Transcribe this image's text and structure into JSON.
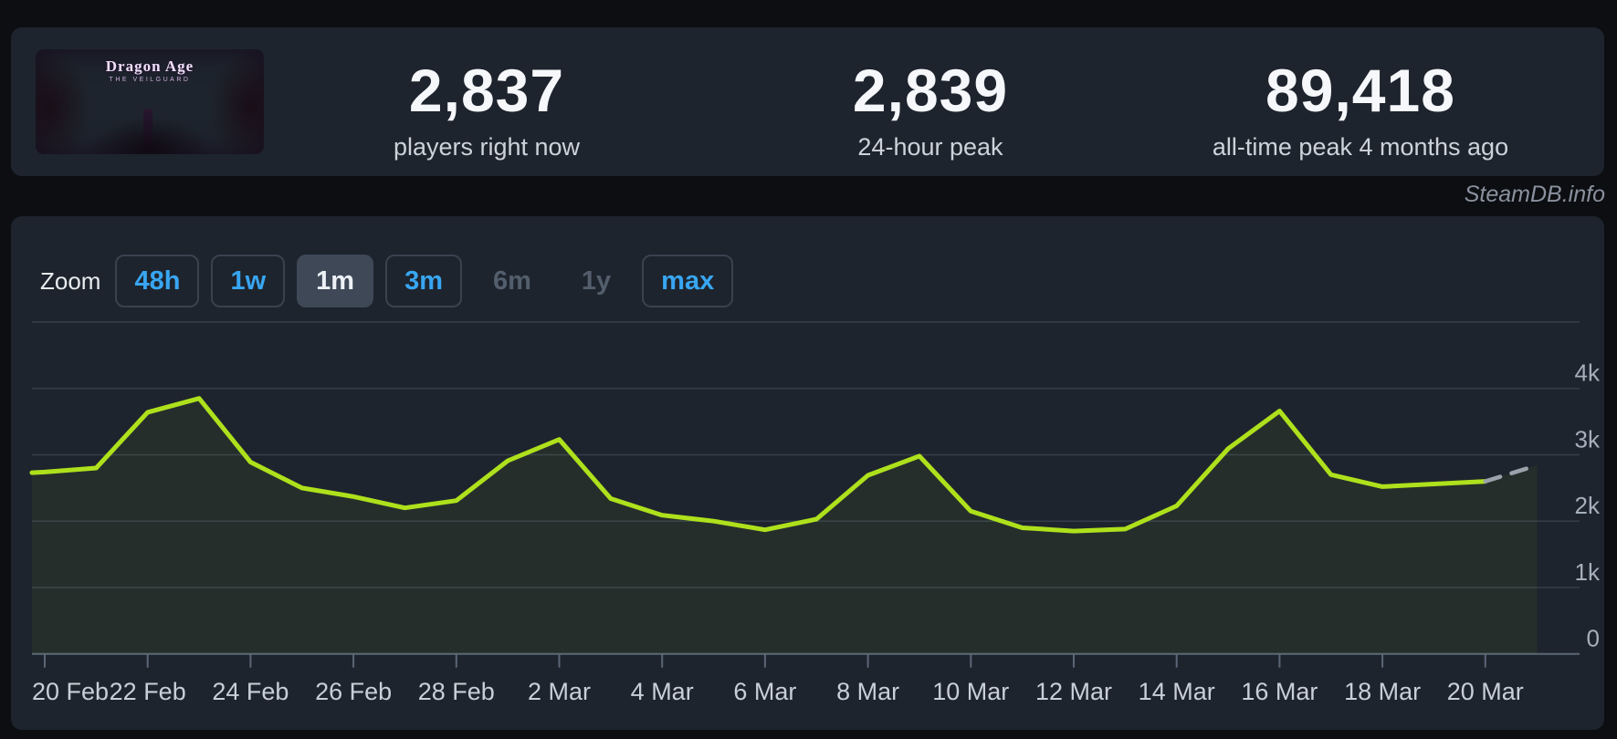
{
  "header": {
    "game_capsule": {
      "title": "Dragon Age",
      "subtitle": "THE VEILGUARD"
    },
    "stats": [
      {
        "value": "2,837",
        "label": "players right now"
      },
      {
        "value": "2,839",
        "label": "24-hour peak"
      },
      {
        "value": "89,418",
        "label": "all-time peak 4 months ago"
      }
    ]
  },
  "credit": "SteamDB.info",
  "zoom_bar": {
    "label": "Zoom",
    "buttons": [
      {
        "label": "48h",
        "state": "normal"
      },
      {
        "label": "1w",
        "state": "normal"
      },
      {
        "label": "1m",
        "state": "selected"
      },
      {
        "label": "3m",
        "state": "normal"
      },
      {
        "label": "6m",
        "state": "disabled"
      },
      {
        "label": "1y",
        "state": "disabled"
      },
      {
        "label": "max",
        "state": "normal"
      }
    ]
  },
  "chart_data": {
    "type": "line",
    "x": [
      "20 Feb",
      "21 Feb",
      "22 Feb",
      "23 Feb",
      "24 Feb",
      "25 Feb",
      "26 Feb",
      "27 Feb",
      "28 Feb",
      "1 Mar",
      "2 Mar",
      "3 Mar",
      "4 Mar",
      "5 Mar",
      "6 Mar",
      "7 Mar",
      "8 Mar",
      "9 Mar",
      "10 Mar",
      "11 Mar",
      "12 Mar",
      "13 Mar",
      "14 Mar",
      "15 Mar",
      "16 Mar",
      "17 Mar",
      "18 Mar",
      "19 Mar",
      "20 Mar",
      "21 Mar"
    ],
    "values": [
      2740,
      2800,
      3640,
      3850,
      2890,
      2500,
      2370,
      2200,
      2310,
      2910,
      3230,
      2340,
      2090,
      2000,
      1870,
      2030,
      2690,
      2980,
      2150,
      1900,
      1850,
      1880,
      2230,
      3090,
      3660,
      2700,
      2520,
      2560,
      2600,
      2840
    ],
    "last_point_provisional": true,
    "x_tick_labels": [
      "20 Feb",
      "22 Feb",
      "24 Feb",
      "26 Feb",
      "28 Feb",
      "2 Mar",
      "4 Mar",
      "6 Mar",
      "8 Mar",
      "10 Mar",
      "12 Mar",
      "14 Mar",
      "16 Mar",
      "18 Mar",
      "20 Mar"
    ],
    "y_tick_labels": [
      "0",
      "1k",
      "2k",
      "3k",
      "4k"
    ],
    "ylim": [
      0,
      5000
    ],
    "grid": true,
    "legend": "none",
    "series_name": "Players",
    "line_color": "#aee11c",
    "provisional_dash_color": "#9aa2ac",
    "area_fill": "rgba(174,225,28,0.06)"
  },
  "colors": {
    "page_bg": "#0c0e12",
    "panel_bg": "#1e242d",
    "accent_blue": "#38a6f2",
    "grid_line": "#353e4a",
    "axis_line": "#5a6678",
    "y_label": "#a6afbc",
    "x_label": "#c9cfd8"
  }
}
